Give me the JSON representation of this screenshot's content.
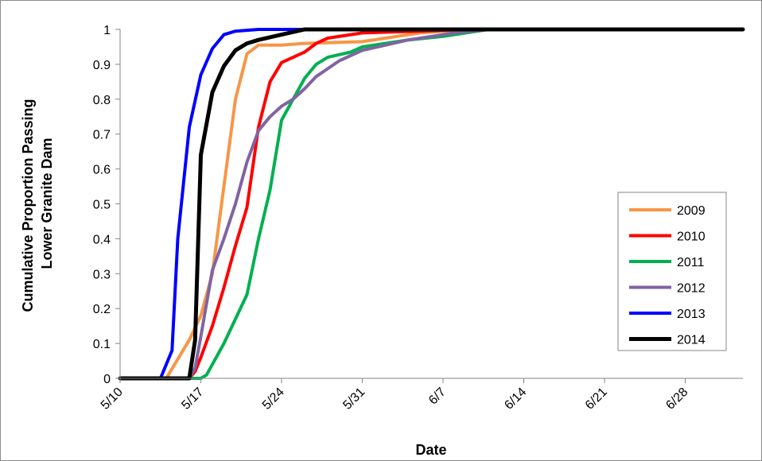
{
  "chart_data": {
    "type": "line",
    "ylabel_lines": [
      "Cumulative Proportion Passing",
      "Lower Granite Dam"
    ],
    "xlabel": "Date",
    "x_ticks": [
      "5/10",
      "5/17",
      "5/24",
      "5/31",
      "6/7",
      "6/14",
      "6/21",
      "6/28"
    ],
    "y_ticks": [
      "0",
      "0.1",
      "0.2",
      "0.3",
      "0.4",
      "0.5",
      "0.6",
      "0.7",
      "0.8",
      "0.9",
      "1"
    ],
    "xlim": [
      "5/10",
      "7/3"
    ],
    "ylim": [
      0,
      1
    ],
    "grid": false,
    "legend_position": "right",
    "series": [
      {
        "name": "2009",
        "color": "#F79646",
        "width": 4,
        "points": [
          [
            "5/10",
            0
          ],
          [
            "5/14",
            0
          ],
          [
            "5/16",
            0.11
          ],
          [
            "5/17",
            0.18
          ],
          [
            "5/18",
            0.3
          ],
          [
            "5/19",
            0.55
          ],
          [
            "5/20",
            0.8
          ],
          [
            "5/21",
            0.93
          ],
          [
            "5/22",
            0.955
          ],
          [
            "5/24",
            0.955
          ],
          [
            "5/26",
            0.96
          ],
          [
            "5/31",
            0.965
          ],
          [
            "6/2",
            0.975
          ],
          [
            "6/5",
            0.99
          ],
          [
            "6/7",
            0.995
          ],
          [
            "6/10",
            1
          ],
          [
            "7/3",
            1
          ]
        ]
      },
      {
        "name": "2010",
        "color": "#FF0000",
        "width": 4,
        "points": [
          [
            "5/10",
            0
          ],
          [
            "5/16",
            0
          ],
          [
            "5/16.5",
            0.02
          ],
          [
            "5/17",
            0.06
          ],
          [
            "5/18",
            0.15
          ],
          [
            "5/19",
            0.26
          ],
          [
            "5/20",
            0.38
          ],
          [
            "5/21",
            0.49
          ],
          [
            "5/22",
            0.72
          ],
          [
            "5/23",
            0.85
          ],
          [
            "5/24",
            0.905
          ],
          [
            "5/26",
            0.935
          ],
          [
            "5/27",
            0.96
          ],
          [
            "5/28",
            0.975
          ],
          [
            "5/31",
            0.99
          ],
          [
            "6/5",
            0.995
          ],
          [
            "6/9",
            1
          ],
          [
            "7/3",
            1
          ]
        ]
      },
      {
        "name": "2011",
        "color": "#00B050",
        "width": 4,
        "points": [
          [
            "5/10",
            0
          ],
          [
            "5/17",
            0
          ],
          [
            "5/17.5",
            0.01
          ],
          [
            "5/18",
            0.04
          ],
          [
            "5/19",
            0.1
          ],
          [
            "5/20",
            0.17
          ],
          [
            "5/21",
            0.24
          ],
          [
            "5/22",
            0.4
          ],
          [
            "5/23",
            0.54
          ],
          [
            "5/24",
            0.74
          ],
          [
            "5/25",
            0.8
          ],
          [
            "5/26",
            0.86
          ],
          [
            "5/27",
            0.9
          ],
          [
            "5/28",
            0.92
          ],
          [
            "5/30",
            0.935
          ],
          [
            "5/31",
            0.95
          ],
          [
            "6/2",
            0.96
          ],
          [
            "6/4",
            0.97
          ],
          [
            "6/7",
            0.98
          ],
          [
            "6/10",
            0.995
          ],
          [
            "6/11",
            1
          ],
          [
            "7/3",
            1
          ]
        ]
      },
      {
        "name": "2012",
        "color": "#8064A2",
        "width": 4,
        "points": [
          [
            "5/10",
            0
          ],
          [
            "5/16",
            0
          ],
          [
            "5/16.5",
            0.03
          ],
          [
            "5/17",
            0.12
          ],
          [
            "5/18",
            0.31
          ],
          [
            "5/19",
            0.4
          ],
          [
            "5/20",
            0.5
          ],
          [
            "5/21",
            0.62
          ],
          [
            "5/22",
            0.71
          ],
          [
            "5/23",
            0.75
          ],
          [
            "5/24",
            0.78
          ],
          [
            "5/25",
            0.8
          ],
          [
            "5/26",
            0.83
          ],
          [
            "5/27",
            0.865
          ],
          [
            "5/29",
            0.91
          ],
          [
            "5/31",
            0.94
          ],
          [
            "6/2",
            0.955
          ],
          [
            "6/4",
            0.97
          ],
          [
            "6/6",
            0.98
          ],
          [
            "6/8",
            0.99
          ],
          [
            "6/11",
            1
          ],
          [
            "7/3",
            1
          ]
        ]
      },
      {
        "name": "2013",
        "color": "#0000FF",
        "width": 4,
        "points": [
          [
            "5/10",
            0
          ],
          [
            "5/13.5",
            0
          ],
          [
            "5/14.5",
            0.08
          ],
          [
            "5/15",
            0.4
          ],
          [
            "5/16",
            0.72
          ],
          [
            "5/17",
            0.87
          ],
          [
            "5/18",
            0.945
          ],
          [
            "5/19",
            0.985
          ],
          [
            "5/20",
            0.995
          ],
          [
            "5/22",
            1
          ],
          [
            "7/3",
            1
          ]
        ]
      },
      {
        "name": "2014",
        "color": "#000000",
        "width": 5,
        "points": [
          [
            "5/10",
            0
          ],
          [
            "5/16",
            0
          ],
          [
            "5/16.5",
            0.11
          ],
          [
            "5/17",
            0.64
          ],
          [
            "5/18",
            0.82
          ],
          [
            "5/19",
            0.895
          ],
          [
            "5/20",
            0.94
          ],
          [
            "5/21",
            0.96
          ],
          [
            "5/22",
            0.97
          ],
          [
            "5/24",
            0.985
          ],
          [
            "5/26",
            1
          ],
          [
            "7/3",
            1
          ]
        ]
      }
    ]
  }
}
